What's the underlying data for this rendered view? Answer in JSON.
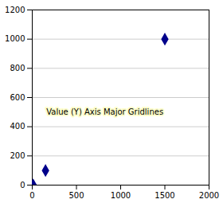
{
  "chart_data": {
    "type": "scatter",
    "x": [
      10,
      150,
      1500
    ],
    "values": [
      1,
      100,
      1000
    ],
    "color": "#00008B",
    "marker": "diamond",
    "xlim": [
      0,
      2000
    ],
    "ylim": [
      0,
      1200
    ],
    "xticks": [
      0,
      500,
      1000,
      1500,
      2000
    ],
    "yticks": [
      0,
      200,
      400,
      600,
      800,
      1000,
      1200
    ],
    "grid": "y",
    "annotations": [
      "Value (Y) Axis Major Gridlines"
    ]
  }
}
